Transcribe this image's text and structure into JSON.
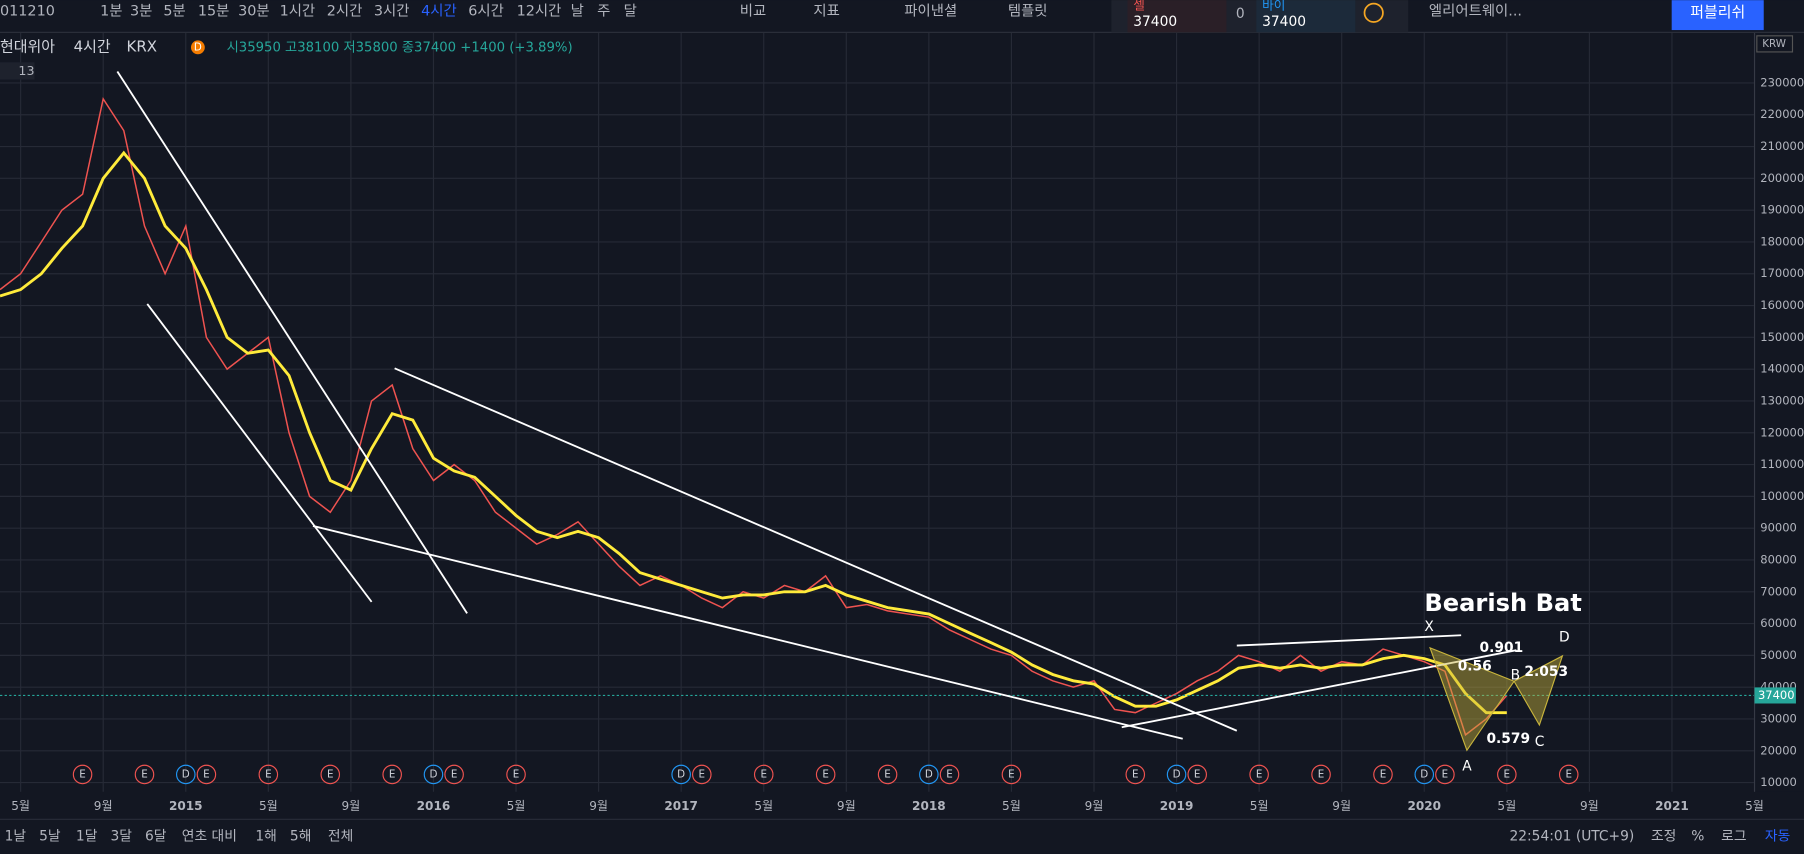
{
  "toolbar": {
    "symbol": "011210",
    "intervals": [
      "1분",
      "3분",
      "5분",
      "15분",
      "30분",
      "1시간",
      "2시간",
      "3시간",
      "4시간",
      "6시간",
      "12시간",
      "날",
      "주",
      "달"
    ],
    "compare": "비교",
    "indicators": "지표",
    "financials": "파이낸셜",
    "templates": "템플릿",
    "tool": "엘리어트웨이...",
    "publish": "퍼블리쉬",
    "sell_label": "셀",
    "sell_price": "37400",
    "spread": "0",
    "buy_label": "바이",
    "buy_price": "37400"
  },
  "legend": {
    "name": "현대위아",
    "interval": "4시간",
    "exchange": "KRX",
    "badge": "D",
    "ohlc": "시35950 고38100 저35800 종37400 +1400 (+3.89%)",
    "count": "13"
  },
  "chart_data": {
    "type": "line",
    "currency": "KRW",
    "last_price": 37400,
    "x": [
      "2014-04",
      "2014-05",
      "2014-06",
      "2014-07",
      "2014-08",
      "2014-09",
      "2014-10",
      "2014-11",
      "2014-12",
      "2015-01",
      "2015-02",
      "2015-03",
      "2015-04",
      "2015-05",
      "2015-06",
      "2015-07",
      "2015-08",
      "2015-09",
      "2015-10",
      "2015-11",
      "2015-12",
      "2016-01",
      "2016-02",
      "2016-03",
      "2016-04",
      "2016-05",
      "2016-06",
      "2016-07",
      "2016-08",
      "2016-09",
      "2016-10",
      "2016-11",
      "2016-12",
      "2017-01",
      "2017-02",
      "2017-03",
      "2017-04",
      "2017-05",
      "2017-06",
      "2017-07",
      "2017-08",
      "2017-09",
      "2017-10",
      "2017-11",
      "2017-12",
      "2018-01",
      "2018-02",
      "2018-03",
      "2018-04",
      "2018-05",
      "2018-06",
      "2018-07",
      "2018-08",
      "2018-09",
      "2018-10",
      "2018-11",
      "2018-12",
      "2019-01",
      "2019-02",
      "2019-03",
      "2019-04",
      "2019-05",
      "2019-06",
      "2019-07",
      "2019-08",
      "2019-09",
      "2019-10",
      "2019-11",
      "2019-12",
      "2020-01",
      "2020-02",
      "2020-03",
      "2020-04",
      "2020-05"
    ],
    "series": [
      {
        "name": "price",
        "color": "#ef5350",
        "values": [
          165000,
          170000,
          180000,
          190000,
          195000,
          225000,
          215000,
          185000,
          170000,
          185000,
          150000,
          140000,
          145000,
          150000,
          120000,
          100000,
          95000,
          105000,
          130000,
          135000,
          115000,
          105000,
          110000,
          105000,
          95000,
          90000,
          85000,
          88000,
          92000,
          85000,
          78000,
          72000,
          75000,
          72000,
          68000,
          65000,
          70000,
          68000,
          72000,
          70000,
          75000,
          65000,
          66000,
          64000,
          63000,
          62000,
          58000,
          55000,
          52000,
          50000,
          45000,
          42000,
          40000,
          42000,
          33000,
          32000,
          35000,
          38000,
          42000,
          45000,
          50000,
          48000,
          45000,
          50000,
          45000,
          48000,
          47000,
          52000,
          50000,
          48000,
          45000,
          25000,
          30000,
          37400
        ]
      },
      {
        "name": "ma",
        "color": "#ffeb3b",
        "values": [
          163000,
          165000,
          170000,
          178000,
          185000,
          200000,
          208000,
          200000,
          185000,
          178000,
          165000,
          150000,
          145000,
          146000,
          138000,
          120000,
          105000,
          102000,
          115000,
          126000,
          124000,
          112000,
          108000,
          106000,
          100000,
          94000,
          89000,
          87000,
          89000,
          87000,
          82000,
          76000,
          74000,
          72000,
          70000,
          68000,
          69000,
          69000,
          70000,
          70000,
          72000,
          69000,
          67000,
          65000,
          64000,
          63000,
          60000,
          57000,
          54000,
          51000,
          47000,
          44000,
          42000,
          41000,
          37000,
          34000,
          34000,
          36000,
          39000,
          42000,
          46000,
          47000,
          46000,
          47000,
          46000,
          47000,
          47000,
          49000,
          50000,
          49000,
          47000,
          38000,
          32000,
          32000
        ]
      }
    ],
    "xlim": [
      "2014-04",
      "2021-05"
    ],
    "xticks": [
      {
        "value": "2014-05",
        "label": "5월"
      },
      {
        "value": "2014-09",
        "label": "9월"
      },
      {
        "value": "2015-01",
        "label": "2015"
      },
      {
        "value": "2015-05",
        "label": "5월"
      },
      {
        "value": "2015-09",
        "label": "9월"
      },
      {
        "value": "2016-01",
        "label": "2016"
      },
      {
        "value": "2016-05",
        "label": "5월"
      },
      {
        "value": "2016-09",
        "label": "9월"
      },
      {
        "value": "2017-01",
        "label": "2017"
      },
      {
        "value": "2017-05",
        "label": "5월"
      },
      {
        "value": "2017-09",
        "label": "9월"
      },
      {
        "value": "2018-01",
        "label": "2018"
      },
      {
        "value": "2018-05",
        "label": "5월"
      },
      {
        "value": "2018-09",
        "label": "9월"
      },
      {
        "value": "2019-01",
        "label": "2019"
      },
      {
        "value": "2019-05",
        "label": "5월"
      },
      {
        "value": "2019-09",
        "label": "9월"
      },
      {
        "value": "2020-01",
        "label": "2020"
      },
      {
        "value": "2020-05",
        "label": "5월"
      },
      {
        "value": "2020-09",
        "label": "9월"
      },
      {
        "value": "2021-01",
        "label": "2021"
      },
      {
        "value": "2021-05",
        "label": "5월"
      }
    ],
    "ylim": [
      7130,
      245900
    ],
    "yticks": [
      10000,
      20000,
      30000,
      40000,
      50000,
      60000,
      70000,
      80000,
      90000,
      100000,
      110000,
      120000,
      130000,
      140000,
      150000,
      160000,
      170000,
      180000,
      190000,
      200000,
      210000,
      220000,
      230000
    ],
    "grid": true,
    "events": [
      {
        "x": "2014-08",
        "label": "E"
      },
      {
        "x": "2014-11",
        "label": "E"
      },
      {
        "x": "2015-01",
        "label": "D"
      },
      {
        "x": "2015-02",
        "label": "E"
      },
      {
        "x": "2015-05",
        "label": "E"
      },
      {
        "x": "2015-08",
        "label": "E"
      },
      {
        "x": "2015-11",
        "label": "E"
      },
      {
        "x": "2016-01",
        "label": "D"
      },
      {
        "x": "2016-02",
        "label": "E"
      },
      {
        "x": "2016-05",
        "label": "E"
      },
      {
        "x": "2017-01",
        "label": "D"
      },
      {
        "x": "2017-02",
        "label": "E"
      },
      {
        "x": "2017-05",
        "label": "E"
      },
      {
        "x": "2017-08",
        "label": "E"
      },
      {
        "x": "2017-11",
        "label": "E"
      },
      {
        "x": "2018-01",
        "label": "D"
      },
      {
        "x": "2018-02",
        "label": "E"
      },
      {
        "x": "2018-05",
        "label": "E"
      },
      {
        "x": "2018-11",
        "label": "E"
      },
      {
        "x": "2019-01",
        "label": "D"
      },
      {
        "x": "2019-02",
        "label": "E"
      },
      {
        "x": "2019-05",
        "label": "E"
      },
      {
        "x": "2019-08",
        "label": "E"
      },
      {
        "x": "2019-11",
        "label": "E"
      },
      {
        "x": "2020-01",
        "label": "D"
      },
      {
        "x": "2020-02",
        "label": "E"
      },
      {
        "x": "2020-05",
        "label": "E"
      },
      {
        "x": "2020-08",
        "label": "E"
      }
    ],
    "pattern": {
      "title": "Bearish Bat",
      "points": [
        "X",
        "A",
        "B",
        "C",
        "D"
      ],
      "ratios": [
        "0.901",
        "0.56",
        "2.053",
        "0.579"
      ]
    }
  },
  "footer": {
    "ranges": [
      "1날",
      "5날",
      "1달",
      "3달",
      "6달",
      "연초 대비",
      "1해",
      "5해",
      "전체"
    ],
    "time": "22:54:01 (UTC+9)",
    "options": [
      "조정",
      "%",
      "로그",
      "자동"
    ]
  }
}
